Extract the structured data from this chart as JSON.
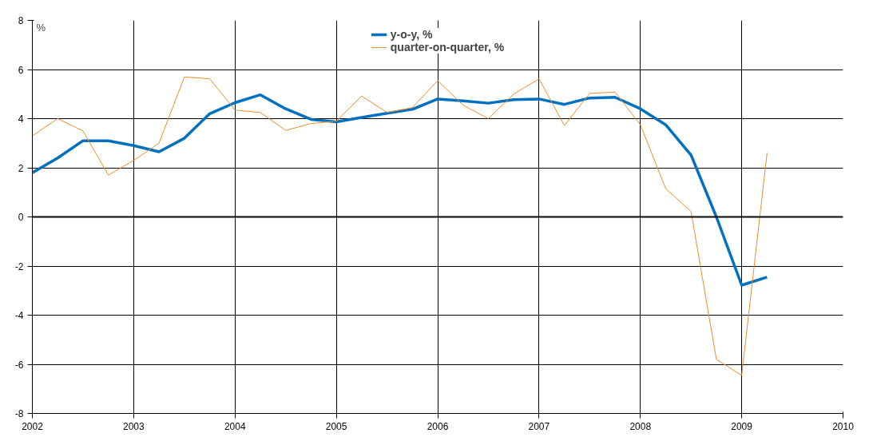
{
  "chart_data": {
    "type": "line",
    "ylabel": "%",
    "x": [
      2002,
      2002.25,
      2002.5,
      2002.75,
      2003,
      2003.25,
      2003.5,
      2003.75,
      2004,
      2004.25,
      2004.5,
      2004.75,
      2005,
      2005.25,
      2005.5,
      2005.75,
      2006,
      2006.25,
      2006.5,
      2006.75,
      2007,
      2007.25,
      2007.5,
      2007.75,
      2008,
      2008.25,
      2008.5,
      2008.75,
      2009,
      2009.25
    ],
    "series": [
      {
        "name": "y-o-y, %",
        "color": "#0070c0",
        "values": [
          1.8,
          2.4,
          3.1,
          3.1,
          2.9,
          2.65,
          3.2,
          4.2,
          4.65,
          4.97,
          4.4,
          3.97,
          3.87,
          4.05,
          4.22,
          4.38,
          4.8,
          4.72,
          4.63,
          4.77,
          4.8,
          4.58,
          4.84,
          4.87,
          4.4,
          3.75,
          2.52,
          0.0,
          -2.78,
          -2.45
        ]
      },
      {
        "name": "quarter-on-quarter, %",
        "color": "#f28c28",
        "values": [
          3.3,
          4.0,
          3.5,
          1.7,
          2.3,
          3.0,
          5.7,
          5.62,
          4.35,
          4.25,
          3.52,
          3.8,
          3.9,
          4.92,
          4.25,
          4.45,
          5.55,
          4.55,
          4.0,
          5.0,
          5.62,
          3.72,
          5.03,
          5.08,
          3.75,
          1.15,
          0.22,
          -5.8,
          -6.45,
          2.6
        ]
      }
    ],
    "xlim": [
      2002,
      2010
    ],
    "xticks": [
      2002,
      2003,
      2004,
      2005,
      2006,
      2007,
      2008,
      2009,
      2010
    ],
    "ylim": [
      -8,
      8
    ],
    "yticks": [
      -8,
      -6,
      -4,
      -2,
      0,
      2,
      4,
      6,
      8
    ],
    "grid": true,
    "legend": "top",
    "marker": "none",
    "line_style": "solid"
  }
}
